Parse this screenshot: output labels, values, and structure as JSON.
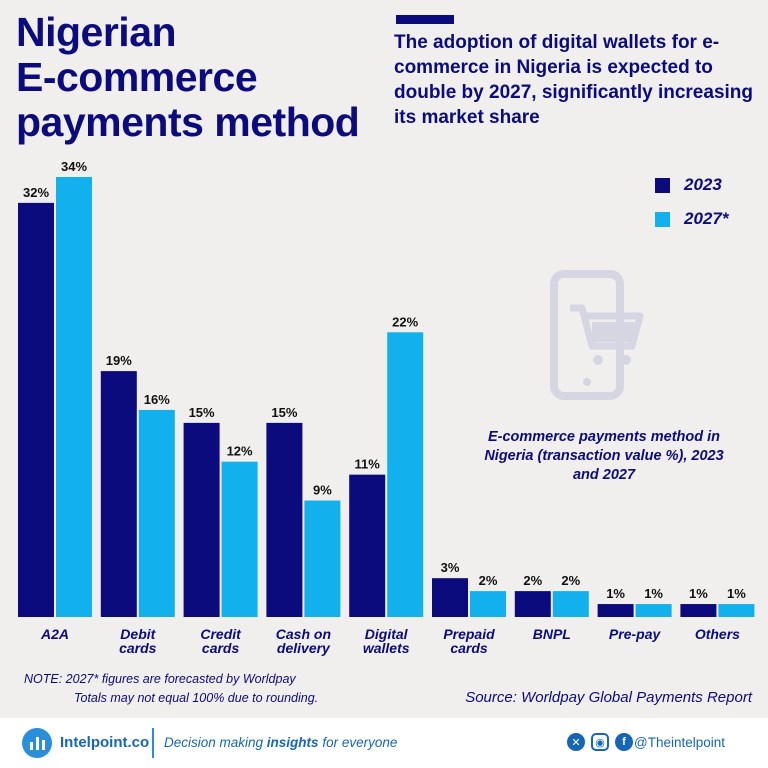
{
  "title": "Nigerian\nE-commerce\npayments method",
  "subtitle": "The adoption of digital wallets for e-commerce in Nigeria is expected to double by 2027, significantly increasing its market share",
  "colors": {
    "primary": "#0b0b7e",
    "secondary": "#12b0ec",
    "background": "#f0efed",
    "icon": "#d5d6e2",
    "footer_text": "#1566b7"
  },
  "chart_caption": "E-commerce payments method in Nigeria (transaction value %), 2023 and 2027",
  "chart_data": {
    "type": "bar",
    "title": "E-commerce payments method in Nigeria (transaction value %), 2023 and 2027",
    "categories": [
      "A2A",
      "Debit\ncards",
      "Credit\ncards",
      "Cash on\ndelivery",
      "Digital\nwallets",
      "Prepaid\ncards",
      "BNPL",
      "Pre-pay",
      "Others"
    ],
    "series": [
      {
        "name": "2023",
        "values": [
          32,
          19,
          15,
          15,
          11,
          3,
          2,
          1,
          1
        ]
      },
      {
        "name": "2027*",
        "values": [
          34,
          16,
          12,
          9,
          22,
          2,
          2,
          1,
          1
        ]
      }
    ],
    "value_suffix": "%",
    "ylim": [
      0,
      34
    ],
    "legend": "top-right",
    "grid": false
  },
  "note": {
    "line1": "NOTE: 2027* figures are forecasted by Worldpay",
    "line2": "Totals may not equal 100% due to rounding."
  },
  "source": "Source: Worldpay Global Payments Report",
  "footer": {
    "brand": "Intelpoint.co",
    "tagline_pre": "Decision making ",
    "tagline_bold": "insights",
    "tagline_post": " for everyone",
    "social_handle": "@Theintelpoint",
    "icons": [
      "x-icon",
      "instagram-icon",
      "facebook-icon"
    ]
  }
}
